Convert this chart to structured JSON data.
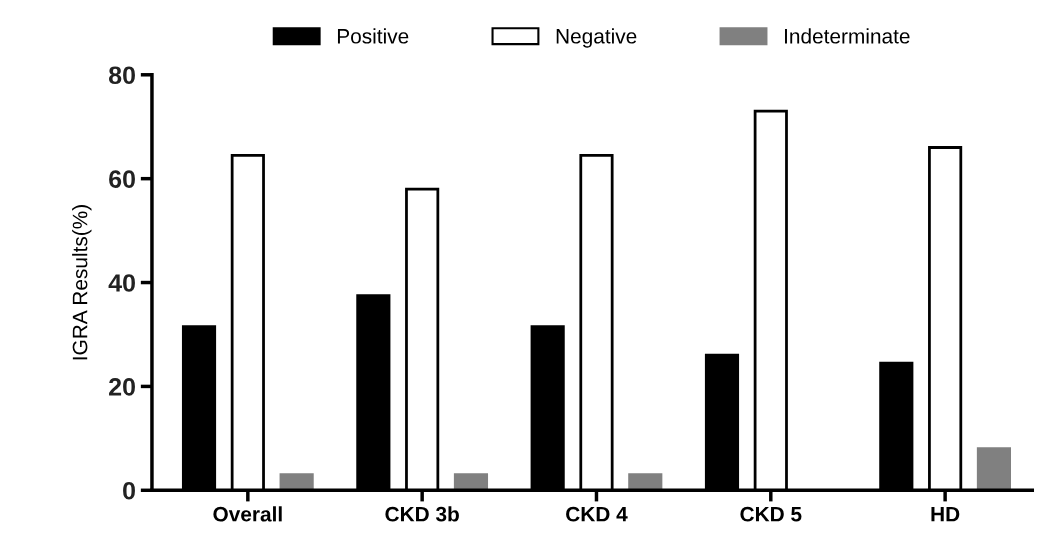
{
  "chart_data": {
    "type": "bar",
    "ylabel": "IGRA Results(%)",
    "categories": [
      "Overall",
      "CKD 3b",
      "CKD 4",
      "CKD 5",
      "HD"
    ],
    "series": [
      {
        "name": "Positive",
        "color": "#000000",
        "values": [
          31.5,
          37.5,
          31.5,
          26,
          24.5
        ]
      },
      {
        "name": "Negative",
        "color": "#ffffff",
        "values": [
          64.5,
          58,
          64.5,
          73,
          66
        ]
      },
      {
        "name": "Indeterminate",
        "color": "#808080",
        "values": [
          3,
          3,
          3,
          0,
          8
        ]
      }
    ],
    "ylim": [
      0,
      80
    ],
    "yticks": [
      0,
      20,
      40,
      60,
      80
    ],
    "grid": false,
    "legend": "top"
  }
}
